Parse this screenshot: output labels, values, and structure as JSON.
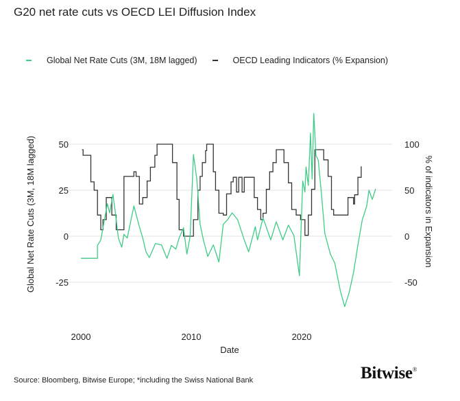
{
  "chart_data": {
    "type": "line",
    "title": "G20 net rate cuts vs OECD LEI Diffusion Index",
    "xlabel": "Date",
    "ylabel_left": "Global Net Rate Cuts (3M, 18M lagged)",
    "ylabel_right": "% of indicators in Expansion",
    "x_ticks": [
      "2000",
      "2010",
      "2020"
    ],
    "y_left_ticks": [
      "50",
      "25",
      "0",
      "-25"
    ],
    "y_right_ticks": [
      "100",
      "50",
      "0",
      "-50"
    ],
    "ylim_left": [
      -45,
      70
    ],
    "ylim_right": [
      -90,
      140
    ],
    "grid": "horizontal",
    "legend_position": "top",
    "series": [
      {
        "name": "Global Net Rate Cuts (3M, 18M lagged)",
        "axis": "left",
        "color": "#3dcc85",
        "points": [
          [
            2000.0,
            -12
          ],
          [
            2001.5,
            -12
          ],
          [
            2001.5,
            -5
          ],
          [
            2001.8,
            -2
          ],
          [
            2002.4,
            17.6
          ],
          [
            2002.6,
            12.7
          ],
          [
            2002.9,
            22.7
          ],
          [
            2003.1,
            14
          ],
          [
            2003.4,
            -1
          ],
          [
            2003.7,
            -6
          ],
          [
            2003.9,
            1
          ],
          [
            2004.2,
            -1
          ],
          [
            2004.8,
            16.4
          ],
          [
            2005.3,
            5.2
          ],
          [
            2005.6,
            -1
          ],
          [
            2005.9,
            -8.5
          ],
          [
            2006.2,
            -11.6
          ],
          [
            2006.75,
            -4
          ],
          [
            2007.3,
            -4.7
          ],
          [
            2007.8,
            -12
          ],
          [
            2008.2,
            -5
          ],
          [
            2008.6,
            -7
          ],
          [
            2008.9,
            -1
          ],
          [
            2009.3,
            4.6
          ],
          [
            2009.6,
            -9.7
          ],
          [
            2009.9,
            0
          ],
          [
            2010.2,
            44.4
          ],
          [
            2010.5,
            31
          ],
          [
            2010.8,
            6.5
          ],
          [
            2011.1,
            -2
          ],
          [
            2011.5,
            -11
          ],
          [
            2012.0,
            -4.7
          ],
          [
            2012.5,
            -14
          ],
          [
            2012.9,
            6.5
          ],
          [
            2013.3,
            9
          ],
          [
            2013.7,
            12.7
          ],
          [
            2014.2,
            9
          ],
          [
            2014.8,
            -2
          ],
          [
            2015.2,
            -8.5
          ],
          [
            2015.8,
            5.2
          ],
          [
            2016.0,
            -2
          ],
          [
            2016.5,
            10
          ],
          [
            2017.2,
            -2
          ],
          [
            2017.7,
            7.8
          ],
          [
            2018.3,
            -2
          ],
          [
            2018.8,
            6
          ],
          [
            2019.3,
            0.4
          ],
          [
            2019.8,
            -21.5
          ],
          [
            2020.1,
            30
          ],
          [
            2020.3,
            24
          ],
          [
            2020.4,
            37.7
          ],
          [
            2020.6,
            27.6
          ],
          [
            2020.8,
            56
          ],
          [
            2020.95,
            31
          ],
          [
            2021.1,
            66.8
          ],
          [
            2021.3,
            43.8
          ],
          [
            2021.5,
            41.4
          ],
          [
            2021.8,
            22.7
          ],
          [
            2022.1,
            1.5
          ],
          [
            2022.6,
            -9.7
          ],
          [
            2023.0,
            -14.6
          ],
          [
            2023.5,
            -29.6
          ],
          [
            2023.9,
            -38.3
          ],
          [
            2024.3,
            -30.8
          ],
          [
            2024.7,
            -19.7
          ],
          [
            2025.1,
            -4.7
          ],
          [
            2025.5,
            9
          ],
          [
            2025.9,
            16.4
          ],
          [
            2026.1,
            25
          ],
          [
            2026.4,
            20
          ],
          [
            2026.7,
            25.7
          ]
        ]
      },
      {
        "name": "OECD Leading Indicators (% Expansion)",
        "axis": "right",
        "color": "#333333",
        "points": [
          [
            2000.1,
            94
          ],
          [
            2000.2,
            88
          ],
          [
            2000.8,
            88
          ],
          [
            2000.9,
            59
          ],
          [
            2001.2,
            50
          ],
          [
            2001.5,
            23
          ],
          [
            2001.8,
            7
          ],
          [
            2002.0,
            18
          ],
          [
            2002.3,
            42
          ],
          [
            2002.5,
            42
          ],
          [
            2002.8,
            23
          ],
          [
            2003.2,
            7
          ],
          [
            2003.5,
            7
          ],
          [
            2003.9,
            65
          ],
          [
            2004.7,
            65
          ],
          [
            2004.8,
            70
          ],
          [
            2005.0,
            65
          ],
          [
            2005.3,
            35
          ],
          [
            2005.6,
            42
          ],
          [
            2006.0,
            60
          ],
          [
            2006.3,
            75
          ],
          [
            2006.7,
            88
          ],
          [
            2006.9,
            100
          ],
          [
            2008.0,
            100
          ],
          [
            2008.3,
            80
          ],
          [
            2008.7,
            40
          ],
          [
            2008.9,
            7
          ],
          [
            2009.3,
            0
          ],
          [
            2009.9,
            0
          ],
          [
            2010.2,
            18
          ],
          [
            2010.6,
            50
          ],
          [
            2010.8,
            65
          ],
          [
            2011.0,
            80
          ],
          [
            2011.3,
            93
          ],
          [
            2011.4,
            100
          ],
          [
            2011.8,
            100
          ],
          [
            2012.0,
            70
          ],
          [
            2012.2,
            50
          ],
          [
            2012.5,
            25
          ],
          [
            2012.9,
            23
          ],
          [
            2013.2,
            46
          ],
          [
            2013.6,
            59
          ],
          [
            2013.8,
            64
          ],
          [
            2014.1,
            48
          ],
          [
            2014.3,
            64
          ],
          [
            2014.6,
            48
          ],
          [
            2014.8,
            64
          ],
          [
            2015.4,
            64
          ],
          [
            2015.7,
            42
          ],
          [
            2016.0,
            29
          ],
          [
            2016.3,
            18
          ],
          [
            2016.5,
            25
          ],
          [
            2016.8,
            51
          ],
          [
            2017.1,
            70
          ],
          [
            2017.4,
            80
          ],
          [
            2017.7,
            94
          ],
          [
            2018.1,
            94
          ],
          [
            2018.4,
            80
          ],
          [
            2018.8,
            58
          ],
          [
            2019.1,
            29
          ],
          [
            2019.5,
            23
          ],
          [
            2019.9,
            18
          ],
          [
            2020.3,
            1
          ],
          [
            2020.6,
            23
          ],
          [
            2020.9,
            51
          ],
          [
            2021.2,
            94
          ],
          [
            2021.7,
            94
          ],
          [
            2022.0,
            83
          ],
          [
            2022.4,
            65
          ],
          [
            2022.7,
            29
          ],
          [
            2022.9,
            23
          ],
          [
            2024.0,
            23
          ],
          [
            2024.2,
            42
          ],
          [
            2024.7,
            35
          ],
          [
            2024.8,
            45
          ],
          [
            2025.1,
            64
          ],
          [
            2025.3,
            64
          ],
          [
            2025.4,
            76
          ]
        ]
      }
    ]
  },
  "source": "Source: Bloomberg, Bitwise Europe; *including the Swiss National Bank",
  "logo": "Bitwise"
}
